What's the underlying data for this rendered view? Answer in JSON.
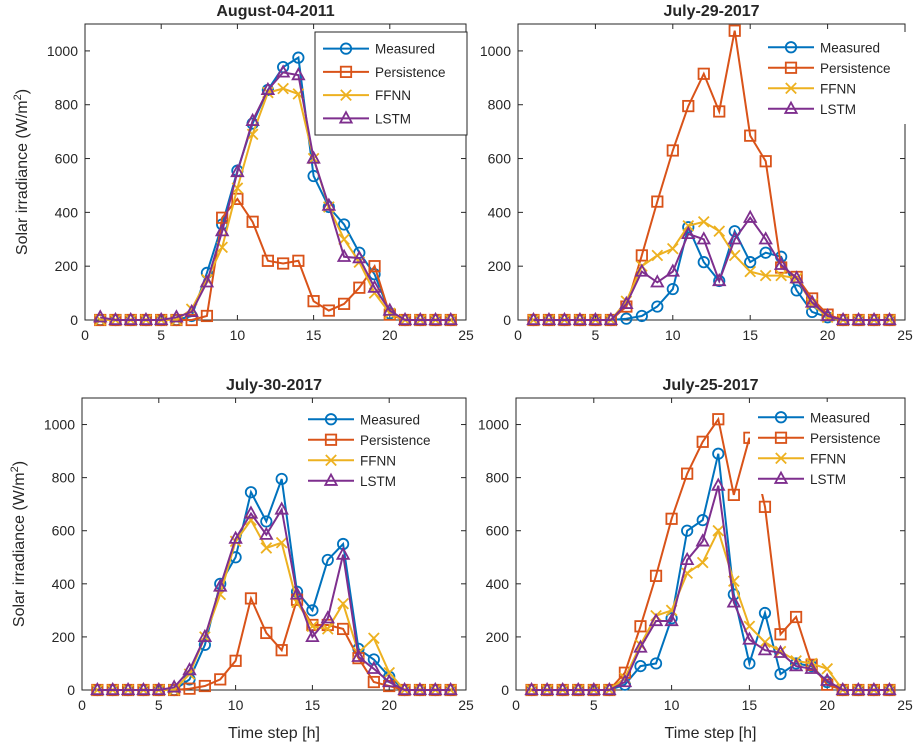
{
  "chart_data": [
    {
      "type": "line",
      "title": "August-04-2011",
      "xlabel": "",
      "ylabel": "Solar irradiance (W/m^2)",
      "xlim": [
        0,
        25
      ],
      "ylim": [
        0,
        1100
      ],
      "xticks": [
        0,
        5,
        10,
        15,
        20,
        25
      ],
      "yticks": [
        0,
        200,
        400,
        600,
        800,
        1000
      ],
      "legend_position": "top-right",
      "legend_boxed": true,
      "x": [
        1,
        2,
        3,
        4,
        5,
        6,
        7,
        8,
        9,
        10,
        11,
        12,
        13,
        14,
        15,
        16,
        17,
        18,
        19,
        20,
        21,
        22,
        23,
        24
      ],
      "series": [
        {
          "name": "Measured",
          "color": "#0072BD",
          "marker": "circle",
          "values": [
            0,
            0,
            0,
            0,
            0,
            0,
            15,
            175,
            355,
            555,
            730,
            855,
            940,
            975,
            535,
            420,
            355,
            250,
            170,
            25,
            0,
            0,
            0,
            0
          ]
        },
        {
          "name": "Persistence",
          "color": "#D95319",
          "marker": "square",
          "values": [
            0,
            0,
            0,
            0,
            0,
            0,
            0,
            15,
            380,
            450,
            365,
            220,
            210,
            220,
            70,
            35,
            60,
            120,
            200,
            20,
            0,
            0,
            0,
            0
          ]
        },
        {
          "name": "FFNN",
          "color": "#EDB120",
          "marker": "x",
          "values": [
            0,
            0,
            0,
            0,
            0,
            0,
            40,
            150,
            270,
            490,
            690,
            845,
            860,
            840,
            600,
            420,
            300,
            215,
            100,
            25,
            0,
            0,
            0,
            0
          ]
        },
        {
          "name": "LSTM",
          "color": "#7E2F8E",
          "marker": "triangle",
          "values": [
            10,
            0,
            0,
            0,
            0,
            10,
            30,
            140,
            330,
            550,
            740,
            855,
            920,
            910,
            600,
            425,
            235,
            230,
            120,
            35,
            0,
            0,
            0,
            0
          ]
        }
      ]
    },
    {
      "type": "line",
      "title": "July-29-2017",
      "xlabel": "",
      "ylabel": "",
      "xlim": [
        0,
        25
      ],
      "ylim": [
        0,
        1100
      ],
      "xticks": [
        0,
        5,
        10,
        15,
        20,
        25
      ],
      "yticks": [
        0,
        200,
        400,
        600,
        800,
        1000
      ],
      "legend_position": "top-right",
      "legend_boxed": false,
      "x": [
        1,
        2,
        3,
        4,
        5,
        6,
        7,
        8,
        9,
        10,
        11,
        12,
        13,
        14,
        15,
        16,
        17,
        18,
        19,
        20,
        21,
        22,
        23,
        24
      ],
      "series": [
        {
          "name": "Measured",
          "color": "#0072BD",
          "marker": "circle",
          "values": [
            0,
            0,
            0,
            0,
            0,
            0,
            5,
            15,
            50,
            115,
            345,
            215,
            145,
            330,
            215,
            250,
            235,
            110,
            30,
            10,
            0,
            0,
            0,
            0
          ]
        },
        {
          "name": "Persistence",
          "color": "#D95319",
          "marker": "square",
          "values": [
            0,
            0,
            0,
            0,
            0,
            0,
            50,
            240,
            440,
            630,
            795,
            915,
            775,
            1075,
            685,
            590,
            195,
            160,
            80,
            20,
            0,
            0,
            0,
            0
          ]
        },
        {
          "name": "FFNN",
          "color": "#EDB120",
          "marker": "x",
          "values": [
            0,
            0,
            0,
            0,
            0,
            0,
            70,
            200,
            240,
            265,
            350,
            365,
            330,
            240,
            180,
            165,
            165,
            155,
            60,
            10,
            0,
            0,
            0,
            0
          ]
        },
        {
          "name": "LSTM",
          "color": "#7E2F8E",
          "marker": "triangle",
          "values": [
            0,
            0,
            0,
            0,
            0,
            0,
            60,
            180,
            140,
            180,
            320,
            300,
            145,
            300,
            380,
            300,
            205,
            155,
            65,
            15,
            0,
            0,
            0,
            0
          ]
        }
      ]
    },
    {
      "type": "line",
      "title": "July-30-2017",
      "xlabel": "Time step [h]",
      "ylabel": "Solar irradiance (W/m^2)",
      "xlim": [
        0,
        25
      ],
      "ylim": [
        0,
        1100
      ],
      "xticks": [
        0,
        5,
        10,
        15,
        20,
        25
      ],
      "yticks": [
        0,
        200,
        400,
        600,
        800,
        1000
      ],
      "legend_position": "top-right",
      "legend_boxed": false,
      "x": [
        1,
        2,
        3,
        4,
        5,
        6,
        7,
        8,
        9,
        10,
        11,
        12,
        13,
        14,
        15,
        16,
        17,
        18,
        19,
        20,
        21,
        22,
        23,
        24
      ],
      "series": [
        {
          "name": "Measured",
          "color": "#0072BD",
          "marker": "circle",
          "values": [
            0,
            0,
            0,
            0,
            0,
            0,
            40,
            170,
            400,
            500,
            745,
            635,
            795,
            370,
            300,
            490,
            550,
            155,
            115,
            50,
            0,
            0,
            0,
            0
          ]
        },
        {
          "name": "Persistence",
          "color": "#D95319",
          "marker": "square",
          "values": [
            0,
            0,
            0,
            0,
            0,
            0,
            5,
            15,
            40,
            110,
            345,
            215,
            150,
            340,
            245,
            245,
            230,
            120,
            30,
            15,
            0,
            0,
            0,
            0
          ]
        },
        {
          "name": "FFNN",
          "color": "#EDB120",
          "marker": "x",
          "values": [
            0,
            0,
            0,
            0,
            0,
            0,
            60,
            200,
            360,
            560,
            640,
            535,
            555,
            330,
            240,
            230,
            325,
            140,
            195,
            65,
            0,
            0,
            0,
            0
          ]
        },
        {
          "name": "LSTM",
          "color": "#7E2F8E",
          "marker": "triangle",
          "values": [
            0,
            0,
            0,
            0,
            0,
            10,
            75,
            200,
            390,
            570,
            665,
            585,
            680,
            360,
            200,
            270,
            510,
            125,
            80,
            30,
            0,
            0,
            0,
            0
          ]
        }
      ]
    },
    {
      "type": "line",
      "title": "July-25-2017",
      "xlabel": "Time step [h]",
      "ylabel": "",
      "xlim": [
        0,
        25
      ],
      "ylim": [
        0,
        1100
      ],
      "xticks": [
        0,
        5,
        10,
        15,
        20,
        25
      ],
      "yticks": [
        0,
        200,
        400,
        600,
        800,
        1000
      ],
      "legend_position": "top-right",
      "legend_boxed": false,
      "x": [
        1,
        2,
        3,
        4,
        5,
        6,
        7,
        8,
        9,
        10,
        11,
        12,
        13,
        14,
        15,
        16,
        17,
        18,
        19,
        20,
        21,
        22,
        23,
        24
      ],
      "series": [
        {
          "name": "Measured",
          "color": "#0072BD",
          "marker": "circle",
          "values": [
            0,
            0,
            0,
            0,
            0,
            0,
            20,
            90,
            100,
            270,
            600,
            640,
            890,
            360,
            100,
            290,
            60,
            100,
            90,
            30,
            0,
            0,
            0,
            0
          ]
        },
        {
          "name": "Persistence",
          "color": "#D95319",
          "marker": "square",
          "values": [
            0,
            0,
            0,
            0,
            0,
            0,
            65,
            240,
            430,
            645,
            815,
            935,
            1020,
            735,
            950,
            690,
            210,
            275,
            95,
            20,
            0,
            0,
            0,
            0
          ]
        },
        {
          "name": "FFNN",
          "color": "#EDB120",
          "marker": "x",
          "values": [
            0,
            0,
            0,
            0,
            0,
            0,
            45,
            170,
            280,
            300,
            440,
            480,
            600,
            410,
            240,
            180,
            145,
            110,
            100,
            80,
            0,
            0,
            0,
            0
          ]
        },
        {
          "name": "LSTM",
          "color": "#7E2F8E",
          "marker": "triangle",
          "values": [
            0,
            0,
            0,
            0,
            0,
            0,
            30,
            160,
            260,
            260,
            490,
            560,
            770,
            330,
            190,
            150,
            140,
            90,
            80,
            35,
            0,
            0,
            0,
            0
          ]
        }
      ]
    }
  ]
}
